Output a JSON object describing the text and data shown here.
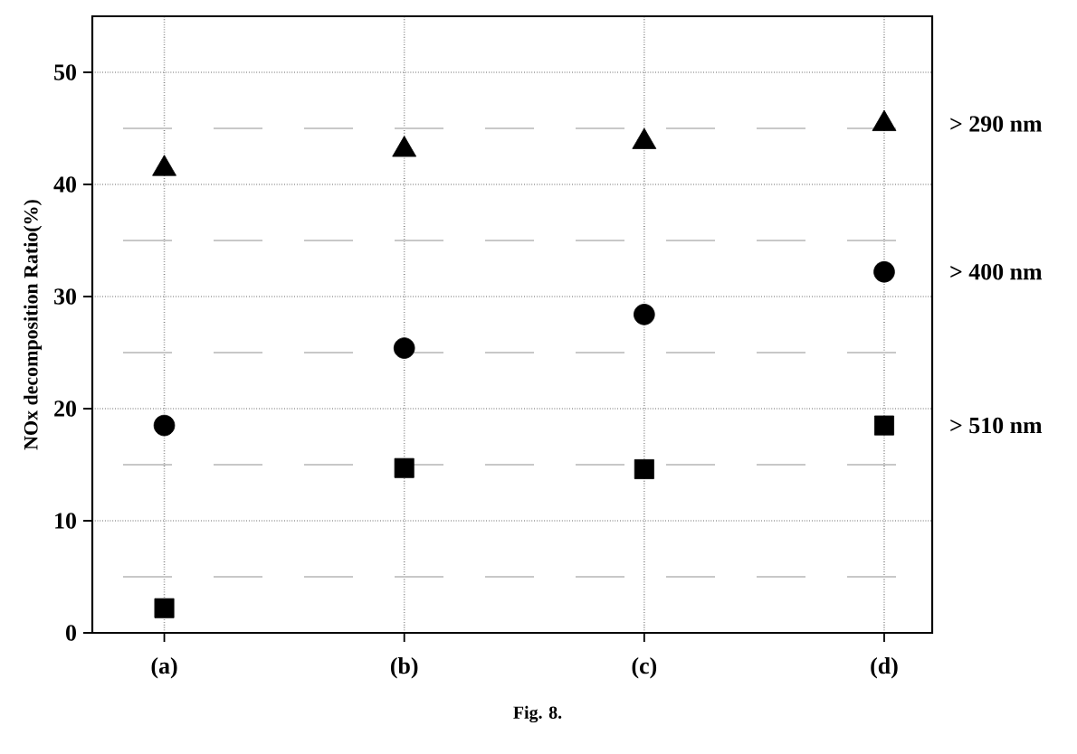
{
  "chart_data": {
    "type": "scatter",
    "ylabel": "NOx decomposition Ratio(%)",
    "annotations": [
      "Fig. 8."
    ],
    "categories": [
      "(a)",
      "(b)",
      "(c)",
      "(d)"
    ],
    "series": [
      {
        "name": "> 290 nm",
        "color": "#000000",
        "marker": "triangle",
        "values": [
          41.4,
          43.1,
          43.8,
          45.4
        ]
      },
      {
        "name": "> 400 nm",
        "color": "#000000",
        "marker": "circle",
        "values": [
          18.5,
          25.4,
          28.4,
          32.2
        ]
      },
      {
        "name": "> 510 nm",
        "color": "#000000",
        "marker": "square",
        "values": [
          2.2,
          14.7,
          14.6,
          18.5
        ]
      }
    ],
    "ylim": [
      0,
      55
    ],
    "yticks": [
      0,
      10,
      20,
      30,
      40,
      50
    ],
    "grid": true,
    "ref_lines": [
      {
        "axis": "y",
        "value": 5,
        "color": "#c8c8c8",
        "line_style": "dashed"
      },
      {
        "axis": "y",
        "value": 15,
        "color": "#c8c8c8",
        "line_style": "dashed"
      },
      {
        "axis": "y",
        "value": 25,
        "color": "#c8c8c8",
        "line_style": "dashed"
      },
      {
        "axis": "y",
        "value": 35,
        "color": "#c8c8c8",
        "line_style": "dashed"
      },
      {
        "axis": "y",
        "value": 45,
        "color": "#c8c8c8",
        "line_style": "dashed"
      }
    ]
  }
}
